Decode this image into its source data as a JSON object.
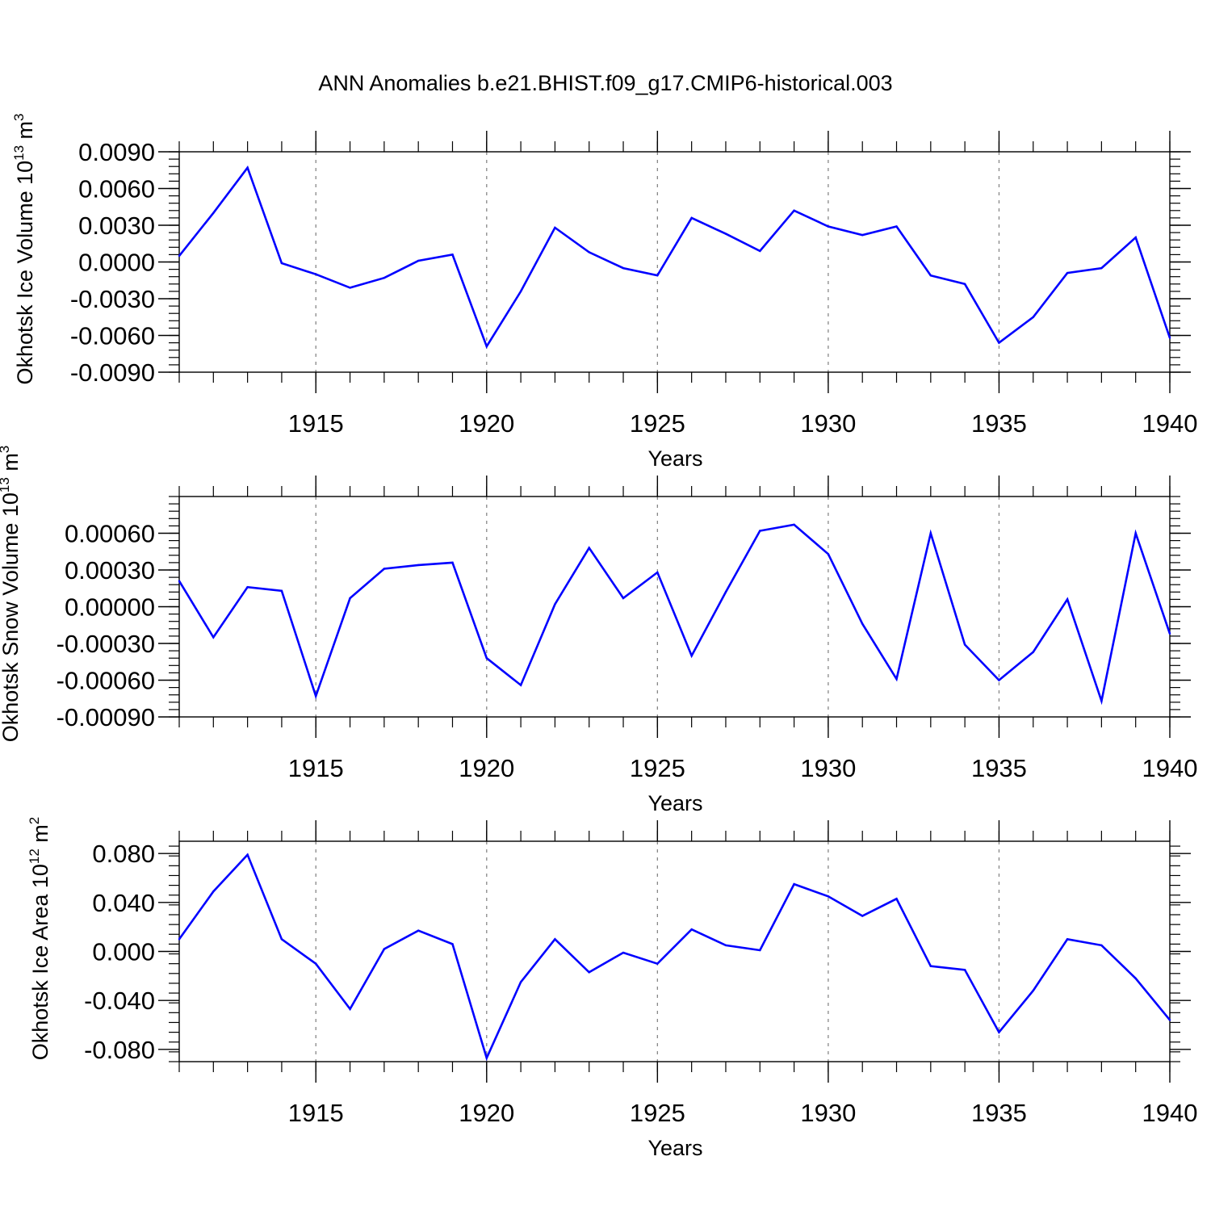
{
  "title": "ANN Anomalies b.e21.BHIST.f09_g17.CMIP6-historical.003",
  "colors": {
    "series": "#0000ff",
    "axis": "#000000",
    "grid": "#888888"
  },
  "chart_data": [
    {
      "type": "line",
      "ylabel_main": "Okhotsk Ice Volume 10",
      "ylabel_exp": "13",
      "ylabel_unit": "m",
      "ylabel_unit_exp": "3",
      "xlabel": "Years",
      "xlim": [
        1911,
        1940
      ],
      "ylim": [
        -0.009,
        0.009
      ],
      "yticks": [
        "0.0090",
        "0.0060",
        "0.0030",
        "0.0000",
        "-0.0030",
        "-0.0060",
        "-0.0090"
      ],
      "yticks_values": [
        0.009,
        0.006,
        0.003,
        0.0,
        -0.003,
        -0.006,
        -0.009
      ],
      "xticks": [
        "1915",
        "1920",
        "1925",
        "1930",
        "1935",
        "1940"
      ],
      "x": [
        1911,
        1912,
        1913,
        1914,
        1915,
        1916,
        1917,
        1918,
        1919,
        1920,
        1921,
        1922,
        1923,
        1924,
        1925,
        1926,
        1927,
        1928,
        1929,
        1930,
        1931,
        1932,
        1933,
        1934,
        1935,
        1936,
        1937,
        1938,
        1939,
        1940
      ],
      "values": [
        0.0005,
        0.004,
        0.0077,
        -0.0001,
        -0.001,
        -0.0021,
        -0.0013,
        0.0001,
        0.0006,
        -0.0069,
        -0.0024,
        0.0028,
        0.0008,
        -0.0005,
        -0.0011,
        0.0036,
        0.0023,
        0.0009,
        0.0042,
        0.0029,
        0.0022,
        0.0029,
        -0.0011,
        -0.0018,
        -0.0066,
        -0.0045,
        -0.0009,
        -0.0005,
        0.002,
        -0.0062
      ]
    },
    {
      "type": "line",
      "ylabel_main": "Okhotsk Snow Volume 10",
      "ylabel_exp": "13",
      "ylabel_unit": "m",
      "ylabel_unit_exp": "3",
      "xlabel": "Years",
      "xlim": [
        1911,
        1940
      ],
      "ylim": [
        -0.0009,
        0.0009
      ],
      "yticks": [
        "0.00060",
        "0.00030",
        "0.00000",
        "-0.00030",
        "-0.00060",
        "-0.00090"
      ],
      "yticks_values": [
        0.0006,
        0.0003,
        0.0,
        -0.0003,
        -0.0006,
        -0.0009
      ],
      "xticks": [
        "1915",
        "1920",
        "1925",
        "1930",
        "1935",
        "1940"
      ],
      "x": [
        1911,
        1912,
        1913,
        1914,
        1915,
        1916,
        1917,
        1918,
        1919,
        1920,
        1921,
        1922,
        1923,
        1924,
        1925,
        1926,
        1927,
        1928,
        1929,
        1930,
        1931,
        1932,
        1933,
        1934,
        1935,
        1936,
        1937,
        1938,
        1939,
        1940
      ],
      "values": [
        0.00021,
        -0.00025,
        0.00016,
        0.00013,
        -0.00073,
        7e-05,
        0.00031,
        0.00034,
        0.00036,
        -0.00042,
        -0.00064,
        2e-05,
        0.00048,
        7e-05,
        0.00028,
        -0.0004,
        0.00012,
        0.00062,
        0.00067,
        0.00043,
        -0.00014,
        -0.00059,
        0.0006,
        -0.00031,
        -0.0006,
        -0.00037,
        6e-05,
        -0.00077,
        0.0006,
        -0.00022
      ]
    },
    {
      "type": "line",
      "ylabel_main": "Okhotsk Ice Area 10",
      "ylabel_exp": "12",
      "ylabel_unit": "m",
      "ylabel_unit_exp": "2",
      "xlabel": "Years",
      "xlim": [
        1911,
        1940
      ],
      "ylim": [
        -0.09,
        0.09
      ],
      "yticks": [
        "0.080",
        "0.040",
        "0.000",
        "-0.040",
        "-0.080"
      ],
      "yticks_values": [
        0.08,
        0.04,
        0.0,
        -0.04,
        -0.08
      ],
      "xticks": [
        "1915",
        "1920",
        "1925",
        "1930",
        "1935",
        "1940"
      ],
      "x": [
        1911,
        1912,
        1913,
        1914,
        1915,
        1916,
        1917,
        1918,
        1919,
        1920,
        1921,
        1922,
        1923,
        1924,
        1925,
        1926,
        1927,
        1928,
        1929,
        1930,
        1931,
        1932,
        1933,
        1934,
        1935,
        1936,
        1937,
        1938,
        1939,
        1940
      ],
      "values": [
        0.01,
        0.049,
        0.079,
        0.01,
        -0.01,
        -0.047,
        0.002,
        0.017,
        0.006,
        -0.087,
        -0.025,
        0.01,
        -0.017,
        -0.001,
        -0.01,
        0.018,
        0.005,
        0.001,
        0.055,
        0.045,
        0.029,
        0.043,
        -0.012,
        -0.015,
        -0.066,
        -0.032,
        0.01,
        0.005,
        -0.022,
        -0.056
      ]
    }
  ]
}
